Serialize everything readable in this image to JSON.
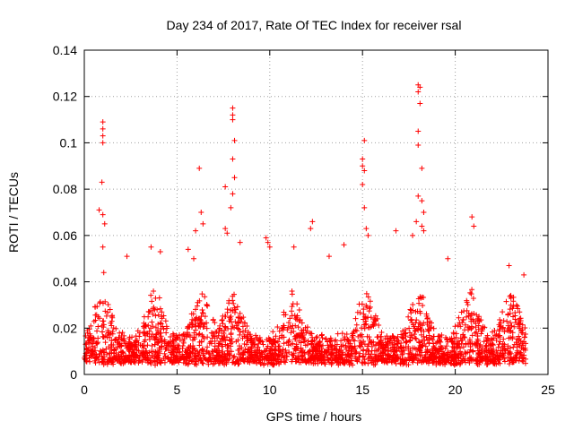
{
  "chart_data": {
    "type": "scatter",
    "title": "Day 234 of 2017, Rate Of TEC Index for receiver rsal",
    "xlabel": "GPS time / hours",
    "ylabel": "ROTI / TECUs",
    "xlim": [
      0,
      25
    ],
    "ylim": [
      0,
      0.14
    ],
    "xticks": [
      0,
      5,
      10,
      15,
      20,
      25
    ],
    "yticks": [
      0,
      0.02,
      0.04,
      0.06,
      0.08,
      0.1,
      0.12,
      0.14
    ],
    "xtick_labels": [
      "0",
      "5",
      "10",
      "15",
      "20",
      "25"
    ],
    "ytick_labels": [
      "0",
      "0.02",
      "0.04",
      "0.06",
      "0.08",
      "0.1",
      "0.12",
      "0.14"
    ],
    "grid": true,
    "marker": "plus",
    "color": "#ff0000",
    "outlier_points": [
      [
        1.0,
        0.109
      ],
      [
        1.0,
        0.106
      ],
      [
        1.0,
        0.103
      ],
      [
        1.0,
        0.1
      ],
      [
        0.95,
        0.083
      ],
      [
        0.8,
        0.071
      ],
      [
        1.0,
        0.069
      ],
      [
        1.1,
        0.065
      ],
      [
        1.0,
        0.055
      ],
      [
        1.05,
        0.044
      ],
      [
        6.2,
        0.089
      ],
      [
        6.3,
        0.07
      ],
      [
        6.4,
        0.065
      ],
      [
        6.0,
        0.062
      ],
      [
        5.6,
        0.054
      ],
      [
        7.6,
        0.081
      ],
      [
        8.0,
        0.115
      ],
      [
        8.0,
        0.112
      ],
      [
        8.0,
        0.11
      ],
      [
        8.1,
        0.101
      ],
      [
        8.0,
        0.093
      ],
      [
        8.1,
        0.085
      ],
      [
        8.0,
        0.078
      ],
      [
        7.9,
        0.072
      ],
      [
        7.6,
        0.063
      ],
      [
        7.7,
        0.061
      ],
      [
        8.4,
        0.057
      ],
      [
        9.8,
        0.059
      ],
      [
        9.9,
        0.057
      ],
      [
        10.0,
        0.055
      ],
      [
        12.3,
        0.066
      ],
      [
        12.2,
        0.063
      ],
      [
        15.1,
        0.101
      ],
      [
        15.0,
        0.093
      ],
      [
        15.0,
        0.09
      ],
      [
        15.1,
        0.088
      ],
      [
        15.0,
        0.082
      ],
      [
        15.1,
        0.072
      ],
      [
        15.2,
        0.063
      ],
      [
        15.3,
        0.06
      ],
      [
        14.0,
        0.056
      ],
      [
        16.8,
        0.062
      ],
      [
        17.7,
        0.06
      ],
      [
        18.0,
        0.125
      ],
      [
        18.1,
        0.124
      ],
      [
        18.0,
        0.122
      ],
      [
        18.1,
        0.117
      ],
      [
        18.0,
        0.105
      ],
      [
        18.0,
        0.099
      ],
      [
        18.2,
        0.089
      ],
      [
        18.0,
        0.077
      ],
      [
        18.2,
        0.075
      ],
      [
        18.3,
        0.07
      ],
      [
        17.9,
        0.066
      ],
      [
        18.2,
        0.064
      ],
      [
        18.3,
        0.062
      ],
      [
        20.9,
        0.068
      ],
      [
        21.0,
        0.064
      ],
      [
        3.6,
        0.055
      ],
      [
        2.3,
        0.051
      ],
      [
        4.1,
        0.053
      ],
      [
        5.9,
        0.05
      ],
      [
        11.3,
        0.055
      ],
      [
        13.2,
        0.051
      ],
      [
        19.6,
        0.05
      ],
      [
        22.9,
        0.047
      ],
      [
        23.7,
        0.043
      ]
    ],
    "dense_band": {
      "x_range": [
        0,
        23.8
      ],
      "typical_min": 0.004,
      "typical_max": 0.035,
      "activity_peaks_hours": [
        1.0,
        3.8,
        6.3,
        8.0,
        11.2,
        15.2,
        18.0,
        20.8,
        23.0
      ]
    }
  }
}
